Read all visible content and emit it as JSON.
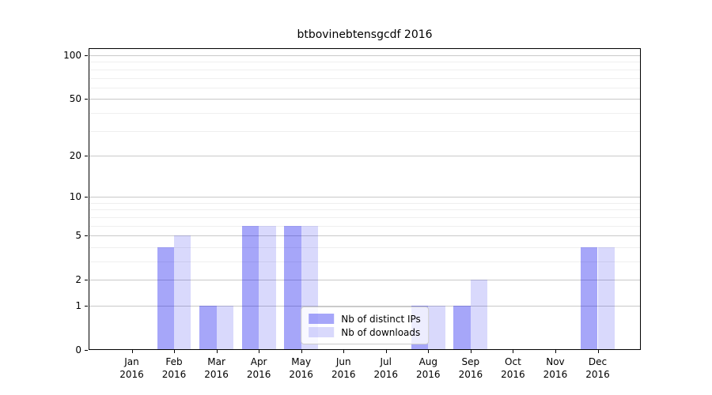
{
  "title": "btbovinebtensgcdf 2016",
  "chart_data": {
    "type": "bar",
    "title": "btbovinebtensgcdf 2016",
    "categories": [
      "Jan 2016",
      "Feb 2016",
      "Mar 2016",
      "Apr 2016",
      "May 2016",
      "Jun 2016",
      "Jul 2016",
      "Aug 2016",
      "Sep 2016",
      "Oct 2016",
      "Nov 2016",
      "Dec 2016"
    ],
    "series": [
      {
        "name": "Nb of distinct IPs",
        "base_color": "#0000ee",
        "alpha": 0.35,
        "values": [
          0,
          4,
          1,
          6,
          6,
          0,
          0,
          1,
          1,
          0,
          0,
          4
        ]
      },
      {
        "name": "Nb of downloads",
        "base_color": "#0000ee",
        "alpha": 0.15,
        "values": [
          0,
          5,
          1,
          6,
          6,
          0,
          0,
          1,
          2,
          0,
          0,
          4
        ]
      }
    ],
    "yscale": "log1p",
    "ylim": [
      0,
      112
    ],
    "yticks": [
      100,
      50,
      20,
      10,
      5,
      2,
      1,
      0
    ],
    "minor_yticks": [
      3,
      4,
      6,
      7,
      8,
      9,
      30,
      40,
      60,
      70,
      80,
      90
    ],
    "xlabel": "",
    "ylabel": "",
    "grid": true,
    "legend_position": "lower center"
  },
  "colors": {
    "major_grid": "#c9c9c9",
    "minor_grid": "#efefef",
    "spine": "#000000",
    "legend_border": "#cccccc",
    "dark_bar_rendered": "#a6a6f8",
    "light_bar_rendered": "#dcdcf9"
  }
}
